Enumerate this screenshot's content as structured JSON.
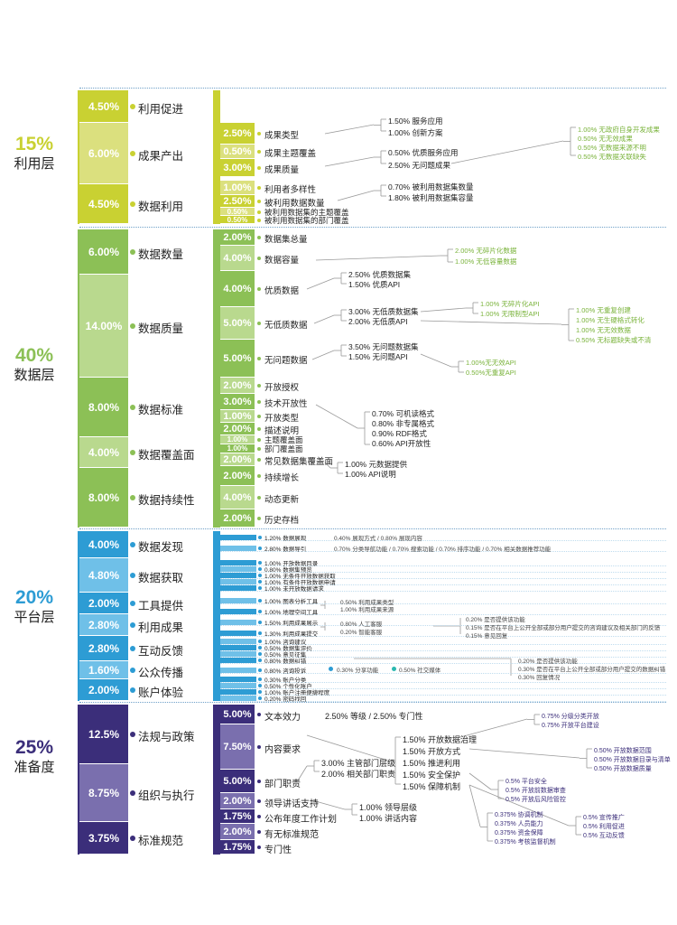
{
  "colors": {
    "util": "#c9d132",
    "util_light": "#dbe07e",
    "data": "#8cc056",
    "data_light": "#b9d98e",
    "plat": "#2d9cd4",
    "plat_light": "#6fc0e8",
    "prep": "#3b2e7a",
    "prep_light": "#7a6fae",
    "green_text": "#7ab33b"
  },
  "layers": [
    {
      "key": "util",
      "percent": "15%",
      "name": "利用层",
      "categories": [
        {
          "value": "4.50%",
          "name": "利用促进"
        },
        {
          "value": "6.00%",
          "name": "成果产出"
        },
        {
          "value": "4.50%",
          "name": "数据利用"
        }
      ],
      "subs": [
        {
          "value": "2.50%",
          "name": "成果类型"
        },
        {
          "value": "0.50%",
          "name": "成果主题覆盖"
        },
        {
          "value": "3.00%",
          "name": "成果质量"
        },
        {
          "value": "1.00%",
          "name": "利用者多样性"
        },
        {
          "value": "2.50%",
          "name": "被利用数据数量"
        },
        {
          "value": "0.50%",
          "name": "被利用数据集的主题覆盖"
        },
        {
          "value": "0.50%",
          "name": "被利用数据集的部门覆盖"
        }
      ],
      "notes": [
        "1.50% 服务应用",
        "1.00% 创新方案",
        "0.50% 优质服务应用",
        "2.50% 无问题成果",
        "0.70% 被利用数据集数量",
        "1.80% 被利用数据集容量"
      ],
      "green_notes": [
        "1.00% 无政府自身开发成果",
        "0.50% 无无效成果",
        "0.50% 无数据来源不明",
        "0.50% 无数据关联缺失"
      ]
    },
    {
      "key": "data",
      "percent": "40%",
      "name": "数据层",
      "categories": [
        {
          "value": "6.00%",
          "name": "数据数量"
        },
        {
          "value": "14.00%",
          "name": "数据质量"
        },
        {
          "value": "8.00%",
          "name": "数据标准"
        },
        {
          "value": "4.00%",
          "name": "数据覆盖面"
        },
        {
          "value": "8.00%",
          "name": "数据持续性"
        }
      ],
      "subs": [
        {
          "value": "2.00%",
          "name": "数据集总量"
        },
        {
          "value": "4.00%",
          "name": "数据容量"
        },
        {
          "value": "4.00%",
          "name": "优质数据"
        },
        {
          "value": "5.00%",
          "name": "无低质数据"
        },
        {
          "value": "5.00%",
          "name": "无问题数据"
        },
        {
          "value": "2.00%",
          "name": "开放授权"
        },
        {
          "value": "3.00%",
          "name": "技术开放性"
        },
        {
          "value": "1.00%",
          "name": "开放类型"
        },
        {
          "value": "2.00%",
          "name": "描述说明"
        },
        {
          "value": "1.00%",
          "name": "主题覆盖面"
        },
        {
          "value": "1.00%",
          "name": "部门覆盖面"
        },
        {
          "value": "2.00%",
          "name": "常见数据集覆盖面"
        },
        {
          "value": "2.00%",
          "name": "持续增长"
        },
        {
          "value": "4.00%",
          "name": "动态更新"
        },
        {
          "value": "2.00%",
          "name": "历史存档"
        }
      ],
      "notes": [
        "2.50% 优质数据集",
        "1.50% 优质API",
        "3.00% 无低质数据集",
        "2.00% 无低质API",
        "3.50% 无问题数据集",
        "1.50% 无问题API",
        "0.70% 可机读格式",
        "0.80% 非专属格式",
        "0.90% RDF格式",
        "0.60% API开放性",
        "1.00% 元数据提供",
        "1.00% API说明"
      ],
      "green_notes": [
        "2.00% 无碎片化数据",
        "1.00% 无低容量数据",
        "1.00% 无碎片化API",
        "1.00% 无限制型API",
        "1.00% 无重复创建",
        "1.00% 无生硬格式转化",
        "1.00% 无无效数据",
        "0.50% 无标题缺失或不清",
        "1.00%无无效API",
        "0.50%无重复API"
      ]
    },
    {
      "key": "plat",
      "percent": "20%",
      "name": "平台层",
      "categories": [
        {
          "value": "4.00%",
          "name": "数据发现"
        },
        {
          "value": "4.80%",
          "name": "数据获取"
        },
        {
          "value": "2.00%",
          "name": "工具提供"
        },
        {
          "value": "2.80%",
          "name": "利用成果"
        },
        {
          "value": "2.80%",
          "name": "互动反馈"
        },
        {
          "value": "1.60%",
          "name": "公众传播"
        },
        {
          "value": "2.00%",
          "name": "账户体验"
        }
      ],
      "subs": [
        {
          "name": "1.20% 数据展现"
        },
        {
          "name": "2.80% 数据导引"
        },
        {
          "name": "1.00% 开放数据目录"
        },
        {
          "name": "0.80% 数据集预览"
        },
        {
          "name": "1.00% 无条件开放数据获取"
        },
        {
          "name": "1.00% 有条件开放数据申请"
        },
        {
          "name": "1.00% 未开放数据请求"
        },
        {
          "name": "1.00% 图表分析工具"
        },
        {
          "name": "1.00% 地理空间工具"
        },
        {
          "name": "1.50% 利用成果展示"
        },
        {
          "name": "1.30% 利用成果提交"
        },
        {
          "name": "1.00% 咨询建议"
        },
        {
          "name": "0.50% 数据集评价"
        },
        {
          "name": "0.50% 意见征集"
        },
        {
          "name": "0.80% 数据纠错"
        },
        {
          "name": "0.80% 咨询投诉"
        },
        {
          "name": "0.30% 账户分类"
        },
        {
          "name": "0.50% 个性化账户"
        },
        {
          "name": "1.00% 账户注册便捷程度"
        },
        {
          "name": "0.20% 密码找回"
        }
      ],
      "inline_notes": [
        "0.40% 展现方式 / 0.80% 展现内容",
        "0.70% 分类导航功能 / 0.70% 搜索功能 / 0.70% 排序功能 / 0.70% 相关数据推荐功能",
        "0.50% 利用成果类型",
        "1.00% 利用成果来源",
        "0.80% 人工客服",
        "0.20% 智能客服",
        "0.20% 是否提供该功能",
        "0.15% 是否在平台上公开全部或部分用户提交的咨询建议及相关部门的反馈",
        "0.15% 意见回复",
        "0.30% 分享功能",
        "0.50% 社交媒体",
        "0.20% 是否提供该功能",
        "0.30% 是否在平台上公开全部或部分用户提交的数据纠错",
        "0.30% 回复情况"
      ]
    },
    {
      "key": "prep",
      "percent": "25%",
      "name": "准备度",
      "categories": [
        {
          "value": "12.5%",
          "name": "法规与政策"
        },
        {
          "value": "8.75%",
          "name": "组织与执行"
        },
        {
          "value": "3.75%",
          "name": "标准规范"
        }
      ],
      "subs": [
        {
          "value": "5.00%",
          "name": "文本效力"
        },
        {
          "value": "7.50%",
          "name": "内容要求"
        },
        {
          "value": "5.00%",
          "name": "部门职责"
        },
        {
          "value": "2.00%",
          "name": "领导讲话支持"
        },
        {
          "value": "1.75%",
          "name": "公布年度工作计划"
        },
        {
          "value": "2.00%",
          "name": "有无标准规范"
        },
        {
          "value": "1.75%",
          "name": "专门性"
        }
      ],
      "notes": [
        "2.50% 等级 / 2.50% 专门性",
        "1.50% 开放数据治理",
        "1.50% 开放方式",
        "1.50% 推进利用",
        "1.50% 安全保护",
        "1.50% 保障机制",
        "3.00% 主管部门层级",
        "2.00% 相关部门职责",
        "1.00% 领导层级",
        "1.00% 讲话内容"
      ],
      "small_notes": [
        "0.75% 分级分类开放",
        "0.75% 开放平台建设",
        "0.50% 开放数据范围",
        "0.50% 开放数据目录与清单",
        "0.50% 开放数据质量",
        "0.5% 平台安全",
        "0.5% 开放前数据审查",
        "0.5% 开放后风险管控",
        "0.375% 协调机制",
        "0.375% 人员能力",
        "0.375% 资金保障",
        "0.375% 考核监督机制",
        "0.5% 宣传推广",
        "0.5% 利用促进",
        "0.5% 互动反馈"
      ]
    }
  ]
}
